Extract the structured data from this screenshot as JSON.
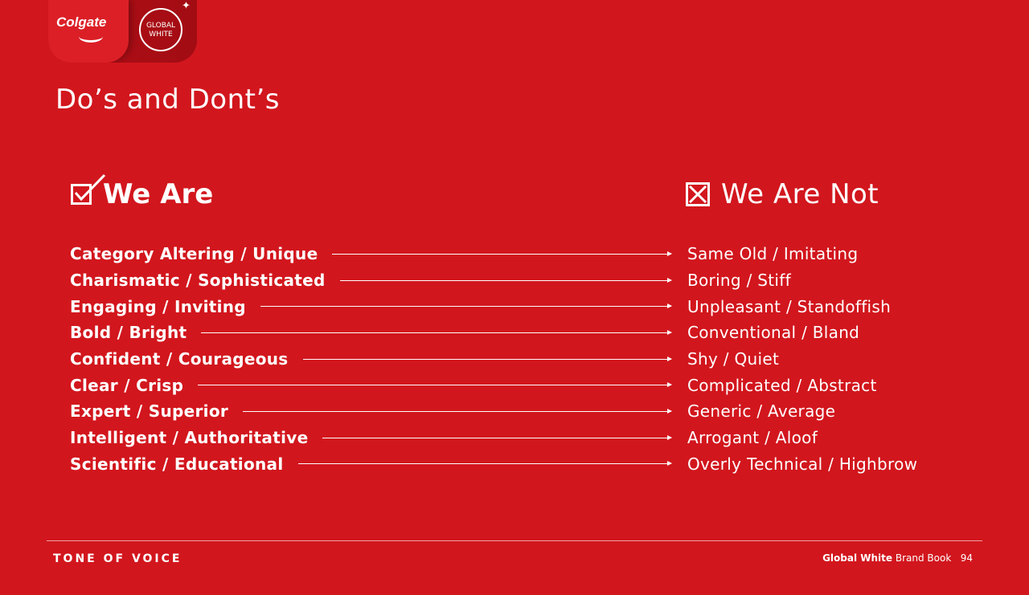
{
  "logo": {
    "brand": "Colgate",
    "sub_line1": "GLOBAL",
    "sub_line2": "WHITE"
  },
  "title": "Do’s and Dont’s",
  "we_are": {
    "heading": "We Are",
    "icon": "checkbox-checked-icon"
  },
  "we_are_not": {
    "heading": "We Are Not",
    "icon": "checkbox-x-icon"
  },
  "rows": [
    {
      "are": "Category Altering / Unique",
      "not": "Same Old / Imitating"
    },
    {
      "are": "Charismatic / Sophisticated",
      "not": "Boring / Stiff"
    },
    {
      "are": "Engaging / Inviting",
      "not": "Unpleasant / Standoffish"
    },
    {
      "are": "Bold / Bright",
      "not": "Conventional / Bland"
    },
    {
      "are": "Confident / Courageous",
      "not": "Shy / Quiet"
    },
    {
      "are": "Clear / Crisp",
      "not": "Complicated / Abstract"
    },
    {
      "are": "Expert / Superior",
      "not": "Generic / Average"
    },
    {
      "are": "Intelligent / Authoritative",
      "not": "Arrogant / Aloof"
    },
    {
      "are": "Scientific / Educational",
      "not": "Overly Technical / Highbrow"
    }
  ],
  "footer": {
    "section": "TONE OF VOICE",
    "book_bold": "Global White",
    "book_rest": "Brand Book",
    "page": "94"
  },
  "colors": {
    "background": "#d2161d",
    "text": "#ffffff"
  }
}
